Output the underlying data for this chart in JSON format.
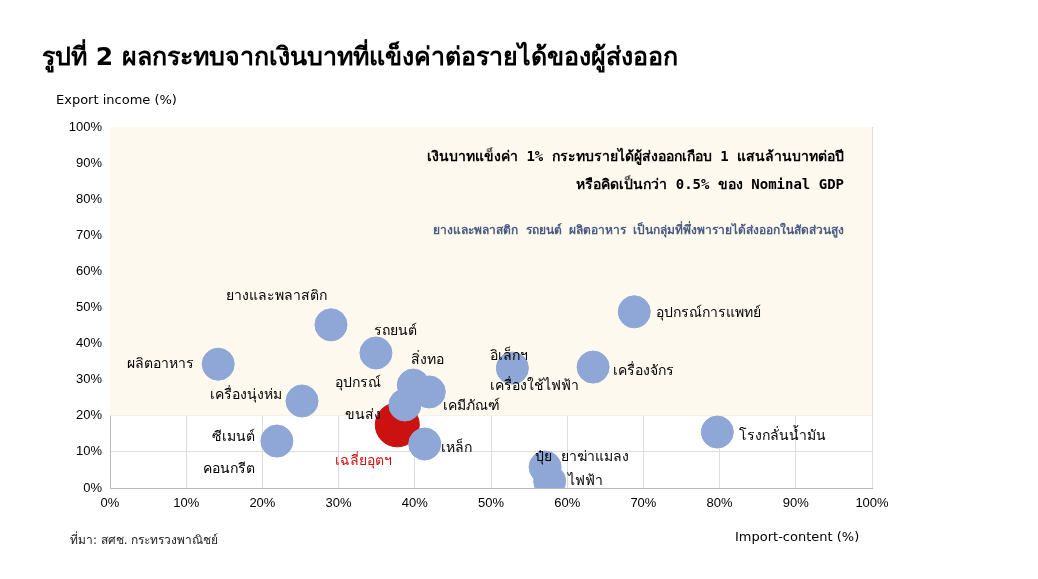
{
  "chart_data": {
    "type": "bubble",
    "title": "รูปที่ 2 ผลกระทบจากเงินบาทที่แข็งค่าต่อรายได้ของผู้ส่งออก",
    "xlabel": "Import-content (%)",
    "ylabel": "Export income (%)",
    "series": [
      {
        "color": "#8ea7d6",
        "x": [
          29.0,
          34.9,
          14.2,
          25.2,
          21.9,
          39.8,
          41.9,
          38.7,
          41.3,
          52.8,
          63.4,
          68.8,
          79.7,
          57.1,
          57.7
        ],
        "values": [
          45.2,
          37.4,
          34.3,
          24.1,
          13.0,
          28.5,
          26.6,
          23.0,
          12.2,
          33.2,
          33.5,
          48.8,
          15.5,
          5.8,
          1.9
        ],
        "sizes": [
          0.53,
          0.53,
          0.53,
          0.53,
          0.53,
          0.53,
          0.53,
          0.53,
          0.53,
          0.53,
          0.53,
          0.53,
          0.53,
          0.53,
          0.53
        ]
      },
      {
        "color": "#cc1111",
        "x": [
          37.7
        ],
        "values": [
          17.5
        ],
        "sizes": [
          1
        ]
      }
    ],
    "xlim": [
      0,
      100
    ],
    "ylim": [
      0,
      100
    ],
    "xticks": [
      {
        "value": 0,
        "label": "0%"
      },
      {
        "value": 10,
        "label": "10%"
      },
      {
        "value": 20,
        "label": "20%"
      },
      {
        "value": 30,
        "label": "30%"
      },
      {
        "value": 40,
        "label": "40%"
      },
      {
        "value": 50,
        "label": "50%"
      },
      {
        "value": 60,
        "label": "60%"
      },
      {
        "value": 70,
        "label": "70%"
      },
      {
        "value": 80,
        "label": "80%"
      },
      {
        "value": 90,
        "label": "90%"
      },
      {
        "value": 100,
        "label": "100%"
      }
    ],
    "yticks": [
      {
        "value": 0,
        "label": "0%"
      },
      {
        "value": 10,
        "label": "10%"
      },
      {
        "value": 20,
        "label": "20%"
      },
      {
        "value": 30,
        "label": "30%"
      },
      {
        "value": 40,
        "label": "40%"
      },
      {
        "value": 50,
        "label": "50%"
      },
      {
        "value": 60,
        "label": "60%"
      },
      {
        "value": 70,
        "label": "70%"
      },
      {
        "value": 80,
        "label": "80%"
      },
      {
        "value": 90,
        "label": "90%"
      },
      {
        "value": 100,
        "label": "100%"
      }
    ],
    "grid": true,
    "marker": "circle",
    "bands": [
      {
        "axis": "y",
        "from": 20,
        "to": 100,
        "color": "#fdf9ee"
      }
    ],
    "annotations": [
      "เงินบาทแข็งค่า 1% กระทบรายได้ผู้ส่งออกเกือบ 1 แสนล้านบาทต่อปี\nหรือคิดเป็นกว่า 0.5% ของ Nominal GDP",
      "ยางและพลาสติก รถยนต์ ผลิตอาหาร เป็นกลุ่มที่พึ่งพารายได้ส่งออกในสัดส่วนสูง",
      "ที่มา: สศช. กระทรวงพาณิชย์",
      {
        "text": "ยางและพลาสติก",
        "x": 29.0,
        "y": 45.2
      },
      {
        "text": "รถยนต์",
        "x": 34.9,
        "y": 37.4
      },
      {
        "text": "ผลิตอาหาร",
        "x": 14.2,
        "y": 34.3
      },
      {
        "text": "เครื่องนุ่งห่ม",
        "x": 25.2,
        "y": 24.1
      },
      {
        "text": "ซีเมนต์\nคอนกรีต",
        "x": 21.9,
        "y": 13.0
      },
      {
        "text": "สิ่งทอ",
        "x": 39.8,
        "y": 28.5
      },
      {
        "text": "เคมีภัณฑ์",
        "x": 41.9,
        "y": 26.6
      },
      {
        "text": "อุปกรณ์\nขนส่ง",
        "x": 38.7,
        "y": 23.0
      },
      {
        "text": "เหล็ก",
        "x": 41.3,
        "y": 12.2
      },
      {
        "text": "อิเล็กฯ\nเครื่องใช้ไฟฟ้า",
        "x": 52.8,
        "y": 33.2
      },
      {
        "text": "เครื่องจักร",
        "x": 63.4,
        "y": 33.5
      },
      {
        "text": "อุปกรณ์การแพทย์",
        "x": 68.8,
        "y": 48.8
      },
      {
        "text": "โรงกลั่นน้ำมัน",
        "x": 79.7,
        "y": 15.5
      },
      {
        "text": "ปุ๋ย ยาฆ่าแมลง",
        "x": 57.1,
        "y": 5.8
      },
      {
        "text": "ไฟฟ้า",
        "x": 57.7,
        "y": 1.9
      },
      {
        "text": "เฉลี่ยอุตฯ",
        "x": 37.7,
        "y": 17.5
      }
    ]
  }
}
